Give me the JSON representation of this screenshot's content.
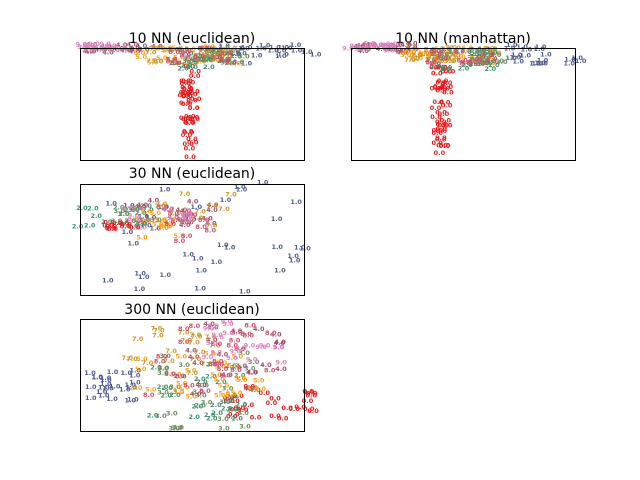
{
  "figure": {
    "panels": [
      {
        "id": "p1",
        "title": "10 NN (euclidean)"
      },
      {
        "id": "p2",
        "title": "10 NN (manhattan)"
      },
      {
        "id": "p3",
        "title": "30 NN (euclidean)"
      },
      {
        "id": "p4",
        "title": "300 NN (euclidean)"
      }
    ]
  },
  "chart_data": {
    "type": "scatter",
    "description_free": true,
    "label_colors": {
      "0.0": "#e41a1c",
      "1.0": "#4e5a8c",
      "2.0": "#3f8f6b",
      "3.0": "#6f8a5a",
      "4.0": "#a04f6c",
      "5.0": "#ff9f1a",
      "7.0": "#c8952b",
      "8.0": "#c9516a",
      "9.0": "#e07fc0"
    },
    "axes_visible": false,
    "panels": [
      {
        "title": "10 NN (euclidean)",
        "xlim": [
          0,
          1
        ],
        "ylim": [
          0,
          1
        ],
        "clusters": [
          {
            "label": "0.0",
            "shape": "stem",
            "x0": 0.45,
            "y0": 0.0,
            "x1": 0.52,
            "y1": 0.85,
            "n": 40
          },
          {
            "label": "1.0",
            "shape": "band",
            "x0": 0.6,
            "y0": 0.85,
            "x1": 1.05,
            "y1": 1.02,
            "n": 25
          },
          {
            "label": "4.0",
            "shape": "band",
            "x0": 0.0,
            "y0": 0.95,
            "x1": 0.35,
            "y1": 1.03,
            "n": 20
          },
          {
            "label": "9.0",
            "shape": "band",
            "x0": -0.02,
            "y0": 0.97,
            "x1": 0.2,
            "y1": 1.03,
            "n": 18
          },
          {
            "label": "5.0",
            "shape": "band",
            "x0": 0.25,
            "y0": 0.85,
            "x1": 0.7,
            "y1": 1.0,
            "n": 30
          },
          {
            "label": "2.0",
            "shape": "band",
            "x0": 0.4,
            "y0": 0.8,
            "x1": 0.7,
            "y1": 0.98,
            "n": 20
          },
          {
            "label": "7.0",
            "shape": "band",
            "x0": 0.3,
            "y0": 0.85,
            "x1": 0.65,
            "y1": 1.0,
            "n": 18
          },
          {
            "label": "3.0",
            "shape": "band",
            "x0": 0.45,
            "y0": 0.85,
            "x1": 0.75,
            "y1": 1.0,
            "n": 15
          },
          {
            "label": "8.0",
            "shape": "band",
            "x0": 0.4,
            "y0": 0.85,
            "x1": 0.7,
            "y1": 1.0,
            "n": 15
          }
        ]
      },
      {
        "title": "10 NN (manhattan)",
        "xlim": [
          0,
          1
        ],
        "ylim": [
          0,
          1
        ],
        "clusters": [
          {
            "label": "0.0",
            "shape": "stem",
            "x0": 0.36,
            "y0": 0.0,
            "x1": 0.44,
            "y1": 0.85,
            "n": 40
          },
          {
            "label": "1.0",
            "shape": "band",
            "x0": 0.55,
            "y0": 0.85,
            "x1": 1.05,
            "y1": 1.02,
            "n": 25
          },
          {
            "label": "4.0",
            "shape": "band",
            "x0": 0.0,
            "y0": 0.95,
            "x1": 0.3,
            "y1": 1.03,
            "n": 20
          },
          {
            "label": "9.0",
            "shape": "band",
            "x0": -0.02,
            "y0": 0.97,
            "x1": 0.18,
            "y1": 1.03,
            "n": 18
          },
          {
            "label": "5.0",
            "shape": "band",
            "x0": 0.2,
            "y0": 0.85,
            "x1": 0.65,
            "y1": 1.0,
            "n": 30
          },
          {
            "label": "2.0",
            "shape": "band",
            "x0": 0.35,
            "y0": 0.8,
            "x1": 0.65,
            "y1": 0.98,
            "n": 20
          },
          {
            "label": "7.0",
            "shape": "band",
            "x0": 0.25,
            "y0": 0.85,
            "x1": 0.6,
            "y1": 1.0,
            "n": 18
          },
          {
            "label": "3.0",
            "shape": "band",
            "x0": 0.4,
            "y0": 0.85,
            "x1": 0.7,
            "y1": 1.0,
            "n": 15
          },
          {
            "label": "8.0",
            "shape": "band",
            "x0": 0.35,
            "y0": 0.85,
            "x1": 0.65,
            "y1": 1.0,
            "n": 15
          }
        ]
      },
      {
        "title": "30 NN (euclidean)",
        "xlim": [
          0,
          1
        ],
        "ylim": [
          0,
          1
        ],
        "clusters": [
          {
            "label": "1.0",
            "shape": "blob",
            "x0": 0.1,
            "y0": 0.0,
            "x1": 1.02,
            "y1": 1.05,
            "n": 38
          },
          {
            "label": "2.0",
            "shape": "blob",
            "x0": -0.02,
            "y0": 0.6,
            "x1": 0.3,
            "y1": 0.8,
            "n": 14
          },
          {
            "label": "4.0",
            "shape": "blob",
            "x0": 0.25,
            "y0": 0.6,
            "x1": 0.6,
            "y1": 0.85,
            "n": 16
          },
          {
            "label": "5.0",
            "shape": "blob",
            "x0": 0.25,
            "y0": 0.5,
            "x1": 0.45,
            "y1": 0.75,
            "n": 14
          },
          {
            "label": "7.0",
            "shape": "blob",
            "x0": 0.35,
            "y0": 0.6,
            "x1": 0.7,
            "y1": 0.95,
            "n": 10
          },
          {
            "label": "8.0",
            "shape": "blob",
            "x0": 0.3,
            "y0": 0.45,
            "x1": 0.6,
            "y1": 0.8,
            "n": 12
          },
          {
            "label": "9.0",
            "shape": "blob",
            "x0": 0.2,
            "y0": 0.6,
            "x1": 0.5,
            "y1": 0.8,
            "n": 12
          },
          {
            "label": "0.0",
            "shape": "blob",
            "x0": 0.12,
            "y0": 0.58,
            "x1": 0.3,
            "y1": 0.65,
            "n": 10
          },
          {
            "label": "3.0",
            "shape": "blob",
            "x0": 0.1,
            "y0": 0.62,
            "x1": 0.35,
            "y1": 0.78,
            "n": 10
          }
        ]
      },
      {
        "title": "300 NN (euclidean)",
        "xlim": [
          0,
          1
        ],
        "ylim": [
          0,
          1
        ],
        "clusters": [
          {
            "label": "1.0",
            "shape": "blob",
            "x0": 0.0,
            "y0": 0.25,
            "x1": 0.25,
            "y1": 0.55,
            "n": 24
          },
          {
            "label": "0.0",
            "shape": "blob",
            "x0": 0.65,
            "y0": 0.1,
            "x1": 1.05,
            "y1": 0.4,
            "n": 28
          },
          {
            "label": "2.0",
            "shape": "blob",
            "x0": 0.3,
            "y0": 0.1,
            "x1": 0.75,
            "y1": 0.6,
            "n": 28
          },
          {
            "label": "3.0",
            "shape": "blob",
            "x0": 0.35,
            "y0": 0.0,
            "x1": 0.8,
            "y1": 0.7,
            "n": 26
          },
          {
            "label": "4.0",
            "shape": "blob",
            "x0": 0.45,
            "y0": 0.3,
            "x1": 0.9,
            "y1": 0.95,
            "n": 22
          },
          {
            "label": "5.0",
            "shape": "blob",
            "x0": 0.2,
            "y0": 0.3,
            "x1": 0.8,
            "y1": 0.7,
            "n": 28
          },
          {
            "label": "7.0",
            "shape": "blob",
            "x0": 0.2,
            "y0": 0.5,
            "x1": 0.6,
            "y1": 0.95,
            "n": 20
          },
          {
            "label": "8.0",
            "shape": "blob",
            "x0": 0.3,
            "y0": 0.3,
            "x1": 0.85,
            "y1": 1.0,
            "n": 26
          },
          {
            "label": "9.0",
            "shape": "blob",
            "x0": 0.5,
            "y0": 0.6,
            "x1": 0.9,
            "y1": 1.0,
            "n": 20
          }
        ]
      }
    ]
  }
}
